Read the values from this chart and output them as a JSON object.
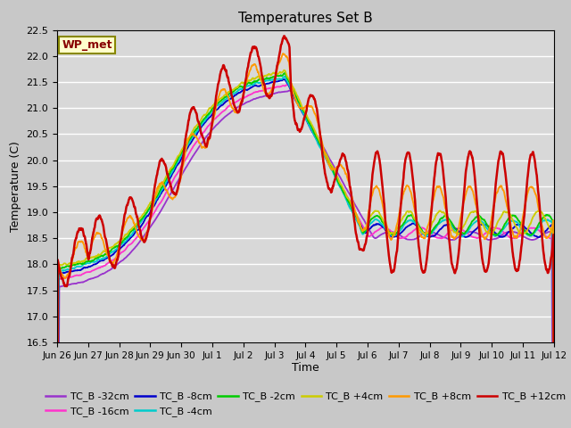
{
  "title": "Temperatures Set B",
  "xlabel": "Time",
  "ylabel": "Temperature (C)",
  "ylim": [
    16.5,
    22.5
  ],
  "annotation_text": "WP_met",
  "annotation_bg": "#ffffcc",
  "annotation_border": "#888800",
  "series_order": [
    "TC_B -32cm",
    "TC_B -16cm",
    "TC_B -8cm",
    "TC_B -4cm",
    "TC_B -2cm",
    "TC_B +4cm",
    "TC_B +8cm",
    "TC_B +12cm"
  ],
  "series_colors": {
    "TC_B -32cm": "#9933cc",
    "TC_B -16cm": "#ff33cc",
    "TC_B -8cm": "#0000cc",
    "TC_B -4cm": "#00cccc",
    "TC_B -2cm": "#00cc00",
    "TC_B +4cm": "#cccc00",
    "TC_B +8cm": "#ff9900",
    "TC_B +12cm": "#cc0000"
  },
  "xtick_labels": [
    "Jun 26",
    "Jun 27",
    "Jun 28",
    "Jun 29",
    "Jun 30",
    "Jul 1",
    "Jul 2",
    "Jul 3",
    "Jul 4",
    "Jul 5",
    "Jul 6",
    "Jul 7",
    "Jul 8",
    "Jul 9",
    "Jul 10",
    "Jul 11",
    "Jul 12"
  ],
  "figsize": [
    6.4,
    4.8
  ],
  "dpi": 100
}
